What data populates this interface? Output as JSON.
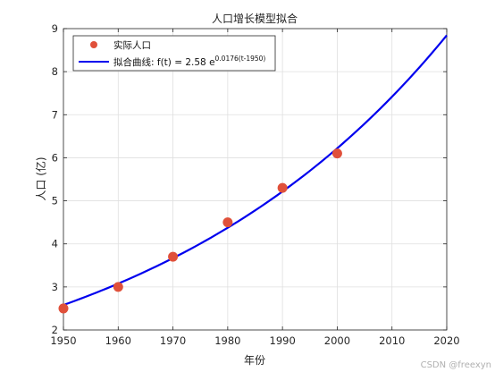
{
  "chart_data": {
    "type": "line",
    "title": "人口增长模型拟合",
    "xlabel": "年份",
    "ylabel": "人口 (亿)",
    "xlim": [
      1950,
      2020
    ],
    "ylim": [
      2,
      9
    ],
    "xticks": [
      1950,
      1960,
      1970,
      1980,
      1990,
      2000,
      2010,
      2020
    ],
    "yticks": [
      2,
      3,
      4,
      5,
      6,
      7,
      8,
      9
    ],
    "grid": true,
    "legend_position": "top-left",
    "series": [
      {
        "name": "实际人口",
        "kind": "scatter",
        "color": "#e0503a",
        "x": [
          1950,
          1960,
          1970,
          1980,
          1990,
          2000
        ],
        "y": [
          2.5,
          3.0,
          3.7,
          4.5,
          5.3,
          6.1
        ]
      },
      {
        "name": "拟合曲线: f(t) = 2.58 e",
        "name_superscript": "0.0176(t-1950)",
        "kind": "line",
        "color": "#0000ee",
        "model": {
          "a": 2.58,
          "b": 0.0176,
          "t0": 1950
        }
      }
    ]
  },
  "watermark": "CSDN @freexyn"
}
